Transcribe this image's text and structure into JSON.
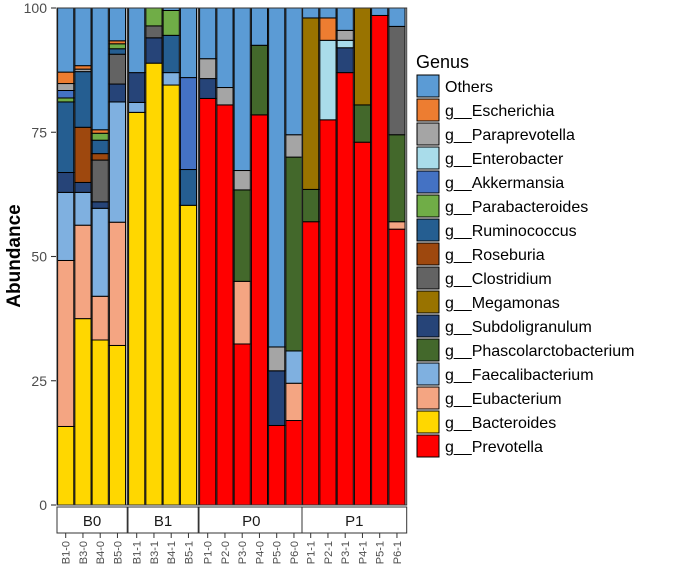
{
  "chart_data": {
    "type": "bar",
    "stacked": true,
    "title": "",
    "xlabel": "",
    "ylabel": "Abundance",
    "ylim": [
      0,
      100
    ],
    "yticks": [
      0,
      25,
      50,
      75,
      100
    ],
    "legend_title": "Genus",
    "legend_position": "right",
    "genera": [
      {
        "name": "Others",
        "color": "#5b9bd5"
      },
      {
        "name": "g__Escherichia",
        "color": "#ed7d31"
      },
      {
        "name": "g__Paraprevotella",
        "color": "#a5a5a5"
      },
      {
        "name": "g__Enterobacter",
        "color": "#a9dcea"
      },
      {
        "name": "g__Akkermansia",
        "color": "#4472c4"
      },
      {
        "name": "g__Parabacteroides",
        "color": "#70ad47"
      },
      {
        "name": "g__Ruminococcus",
        "color": "#255e91"
      },
      {
        "name": "g__Roseburia",
        "color": "#9e480e"
      },
      {
        "name": "g__Clostridium",
        "color": "#636363"
      },
      {
        "name": "g__Megamonas",
        "color": "#997300"
      },
      {
        "name": "g__Subdoligranulum",
        "color": "#264478"
      },
      {
        "name": "g__Phascolarctobacterium",
        "color": "#43682b"
      },
      {
        "name": "g__Faecalibacterium",
        "color": "#7fb0e0"
      },
      {
        "name": "g__Eubacterium",
        "color": "#f4a582"
      },
      {
        "name": "g__Bacteroides",
        "color": "#ffd700"
      },
      {
        "name": "g__Prevotella",
        "color": "#ff0000"
      }
    ],
    "facets": [
      {
        "label": "B0",
        "samples": [
          {
            "name": "B1-0",
            "values": {
              "g__Prevotella": 0,
              "g__Bacteroides": 15.8,
              "g__Eubacterium": 33.4,
              "g__Faecalibacterium": 13.7,
              "g__Phascolarctobacterium": 0,
              "g__Subdoligranulum": 4.0,
              "g__Megamonas": 0,
              "g__Clostridium": 0,
              "g__Roseburia": 0,
              "g__Ruminococcus": 14.2,
              "g__Parabacteroides": 0.8,
              "g__Akkermansia": 1.5,
              "g__Enterobacter": 0,
              "g__Paraprevotella": 1.4,
              "g__Escherichia": 2.3,
              "Others": 12.9
            }
          },
          {
            "name": "B3-0",
            "values": {
              "g__Prevotella": 0,
              "g__Bacteroides": 37.5,
              "g__Eubacterium": 18.8,
              "g__Faecalibacterium": 6.6,
              "g__Phascolarctobacterium": 0,
              "g__Subdoligranulum": 2.0,
              "g__Megamonas": 0,
              "g__Clostridium": 0,
              "g__Roseburia": 11.1,
              "g__Ruminococcus": 11.2,
              "g__Parabacteroides": 0,
              "g__Akkermansia": 0,
              "g__Enterobacter": 0,
              "g__Paraprevotella": 0.5,
              "g__Escherichia": 0.7,
              "Others": 11.6
            }
          },
          {
            "name": "B4-0",
            "values": {
              "g__Prevotella": 0,
              "g__Bacteroides": 33.2,
              "g__Eubacterium": 8.8,
              "g__Faecalibacterium": 17.7,
              "g__Phascolarctobacterium": 0,
              "g__Subdoligranulum": 1.3,
              "g__Megamonas": 0,
              "g__Clostridium": 8.4,
              "g__Roseburia": 1.3,
              "g__Ruminococcus": 2.7,
              "g__Parabacteroides": 1.4,
              "g__Akkermansia": 0,
              "g__Enterobacter": 0,
              "g__Paraprevotella": 0,
              "g__Escherichia": 0.7,
              "Others": 24.5
            }
          },
          {
            "name": "B5-0",
            "values": {
              "g__Prevotella": 0,
              "g__Bacteroides": 32.1,
              "g__Eubacterium": 24.8,
              "g__Faecalibacterium": 24.2,
              "g__Phascolarctobacterium": 0,
              "g__Subdoligranulum": 3.6,
              "g__Megamonas": 0,
              "g__Clostridium": 6.0,
              "g__Roseburia": 0,
              "g__Ruminococcus": 1.1,
              "g__Parabacteroides": 1.0,
              "g__Akkermansia": 0,
              "g__Enterobacter": 0,
              "g__Paraprevotella": 0,
              "g__Escherichia": 0.6,
              "Others": 6.6
            }
          }
        ]
      },
      {
        "label": "B1",
        "samples": [
          {
            "name": "B1-1",
            "values": {
              "g__Prevotella": 0,
              "g__Bacteroides": 79.0,
              "g__Eubacterium": 0,
              "g__Faecalibacterium": 2.0,
              "g__Phascolarctobacterium": 0,
              "g__Subdoligranulum": 6.0,
              "g__Megamonas": 0,
              "g__Clostridium": 0,
              "g__Roseburia": 0,
              "g__Ruminococcus": 0,
              "g__Parabacteroides": 0,
              "g__Akkermansia": 0,
              "g__Enterobacter": 0,
              "g__Paraprevotella": 0,
              "g__Escherichia": 0,
              "Others": 13.0
            }
          },
          {
            "name": "B3-1",
            "values": {
              "g__Prevotella": 0,
              "g__Bacteroides": 88.9,
              "g__Eubacterium": 0,
              "g__Faecalibacterium": 0,
              "g__Phascolarctobacterium": 0,
              "g__Subdoligranulum": 5.1,
              "g__Megamonas": 0,
              "g__Clostridium": 2.4,
              "g__Roseburia": 0,
              "g__Ruminococcus": 0,
              "g__Parabacteroides": 3.6,
              "g__Akkermansia": 0,
              "g__Enterobacter": 0,
              "g__Paraprevotella": 0,
              "g__Escherichia": 0,
              "Others": 0
            }
          },
          {
            "name": "B4-1",
            "values": {
              "g__Prevotella": 0,
              "g__Bacteroides": 84.5,
              "g__Eubacterium": 0,
              "g__Faecalibacterium": 2.5,
              "g__Phascolarctobacterium": 0,
              "g__Subdoligranulum": 0,
              "g__Megamonas": 0,
              "g__Clostridium": 0,
              "g__Roseburia": 0,
              "g__Ruminococcus": 7.5,
              "g__Parabacteroides": 5.0,
              "g__Akkermansia": 0,
              "g__Enterobacter": 0,
              "g__Paraprevotella": 0,
              "g__Escherichia": 0,
              "Others": 0.5
            }
          },
          {
            "name": "B5-1",
            "values": {
              "g__Prevotella": 0,
              "g__Bacteroides": 60.3,
              "g__Eubacterium": 0,
              "g__Faecalibacterium": 0,
              "g__Phascolarctobacterium": 0,
              "g__Subdoligranulum": 0,
              "g__Megamonas": 0,
              "g__Clostridium": 0,
              "g__Roseburia": 0,
              "g__Ruminococcus": 7.2,
              "g__Parabacteroides": 0,
              "g__Akkermansia": 18.5,
              "g__Enterobacter": 0,
              "g__Paraprevotella": 0,
              "g__Escherichia": 0,
              "Others": 14.0
            }
          }
        ]
      },
      {
        "label": "P0",
        "samples": [
          {
            "name": "P1-0",
            "values": {
              "g__Prevotella": 81.8,
              "g__Bacteroides": 0,
              "g__Eubacterium": 0,
              "g__Faecalibacterium": 0,
              "g__Phascolarctobacterium": 0,
              "g__Subdoligranulum": 4.0,
              "g__Megamonas": 0,
              "g__Clostridium": 0,
              "g__Roseburia": 0,
              "g__Ruminococcus": 0,
              "g__Parabacteroides": 0,
              "g__Akkermansia": 0,
              "g__Enterobacter": 0,
              "g__Paraprevotella": 4.0,
              "g__Escherichia": 0,
              "Others": 10.2
            }
          },
          {
            "name": "P2-0",
            "values": {
              "g__Prevotella": 80.5,
              "g__Bacteroides": 0,
              "g__Eubacterium": 0,
              "g__Faecalibacterium": 0,
              "g__Phascolarctobacterium": 0,
              "g__Subdoligranulum": 0,
              "g__Megamonas": 0,
              "g__Clostridium": 0,
              "g__Roseburia": 0,
              "g__Ruminococcus": 0,
              "g__Parabacteroides": 0,
              "g__Akkermansia": 0,
              "g__Enterobacter": 0,
              "g__Paraprevotella": 3.5,
              "g__Escherichia": 0,
              "Others": 16.0
            }
          },
          {
            "name": "P3-0",
            "values": {
              "g__Prevotella": 32.4,
              "g__Bacteroides": 0,
              "g__Eubacterium": 12.6,
              "g__Faecalibacterium": 0,
              "g__Phascolarctobacterium": 18.4,
              "g__Subdoligranulum": 0,
              "g__Megamonas": 0,
              "g__Clostridium": 0,
              "g__Roseburia": 0,
              "g__Ruminococcus": 0,
              "g__Parabacteroides": 0,
              "g__Akkermansia": 0,
              "g__Enterobacter": 0,
              "g__Paraprevotella": 3.9,
              "g__Escherichia": 0,
              "Others": 32.7
            }
          },
          {
            "name": "P4-0",
            "values": {
              "g__Prevotella": 78.5,
              "g__Bacteroides": 0,
              "g__Eubacterium": 0,
              "g__Faecalibacterium": 0,
              "g__Phascolarctobacterium": 14.0,
              "g__Subdoligranulum": 0,
              "g__Megamonas": 0,
              "g__Clostridium": 0,
              "g__Roseburia": 0,
              "g__Ruminococcus": 0,
              "g__Parabacteroides": 0,
              "g__Akkermansia": 0,
              "g__Enterobacter": 0,
              "g__Paraprevotella": 0,
              "g__Escherichia": 0,
              "Others": 7.5
            }
          },
          {
            "name": "P5-0",
            "values": {
              "g__Prevotella": 16.0,
              "g__Bacteroides": 0,
              "g__Eubacterium": 0,
              "g__Faecalibacterium": 0,
              "g__Phascolarctobacterium": 0,
              "g__Subdoligranulum": 11.0,
              "g__Megamonas": 0,
              "g__Clostridium": 0,
              "g__Roseburia": 0,
              "g__Ruminococcus": 0,
              "g__Parabacteroides": 0,
              "g__Akkermansia": 0,
              "g__Enterobacter": 0,
              "g__Paraprevotella": 4.8,
              "g__Escherichia": 0,
              "Others": 68.2
            }
          },
          {
            "name": "P6-0",
            "values": {
              "g__Prevotella": 17.0,
              "g__Bacteroides": 0,
              "g__Eubacterium": 7.5,
              "g__Faecalibacterium": 6.5,
              "g__Phascolarctobacterium": 39.0,
              "g__Subdoligranulum": 0,
              "g__Megamonas": 0,
              "g__Clostridium": 0,
              "g__Roseburia": 0,
              "g__Ruminococcus": 0,
              "g__Parabacteroides": 0,
              "g__Akkermansia": 0,
              "g__Enterobacter": 0,
              "g__Paraprevotella": 4.5,
              "g__Escherichia": 0,
              "Others": 25.5
            }
          }
        ]
      },
      {
        "label": "P1",
        "samples": [
          {
            "name": "P1-1",
            "values": {
              "g__Prevotella": 57.0,
              "g__Bacteroides": 0,
              "g__Eubacterium": 0,
              "g__Faecalibacterium": 0,
              "g__Phascolarctobacterium": 6.5,
              "g__Subdoligranulum": 0,
              "g__Megamonas": 34.5,
              "g__Clostridium": 0,
              "g__Roseburia": 0,
              "g__Ruminococcus": 0,
              "g__Parabacteroides": 0,
              "g__Akkermansia": 0,
              "g__Enterobacter": 0,
              "g__Paraprevotella": 0,
              "g__Escherichia": 0,
              "Others": 2.0
            }
          },
          {
            "name": "P2-1",
            "values": {
              "g__Prevotella": 77.5,
              "g__Bacteroides": 0,
              "g__Eubacterium": 0,
              "g__Faecalibacterium": 0,
              "g__Phascolarctobacterium": 0,
              "g__Subdoligranulum": 0,
              "g__Megamonas": 0,
              "g__Clostridium": 0,
              "g__Roseburia": 0,
              "g__Ruminococcus": 0,
              "g__Parabacteroides": 0,
              "g__Akkermansia": 0,
              "g__Enterobacter": 16.0,
              "g__Paraprevotella": 0,
              "g__Escherichia": 4.5,
              "Others": 2.0
            }
          },
          {
            "name": "P3-1",
            "values": {
              "g__Prevotella": 87.0,
              "g__Bacteroides": 0,
              "g__Eubacterium": 0,
              "g__Faecalibacterium": 0,
              "g__Phascolarctobacterium": 0,
              "g__Subdoligranulum": 5.0,
              "g__Megamonas": 0,
              "g__Clostridium": 0,
              "g__Roseburia": 0,
              "g__Ruminococcus": 0,
              "g__Parabacteroides": 0,
              "g__Akkermansia": 0,
              "g__Enterobacter": 1.5,
              "g__Paraprevotella": 2.0,
              "g__Escherichia": 0,
              "Others": 4.5
            }
          },
          {
            "name": "P4-1",
            "values": {
              "g__Prevotella": 73.0,
              "g__Bacteroides": 0,
              "g__Eubacterium": 0,
              "g__Faecalibacterium": 0,
              "g__Phascolarctobacterium": 7.5,
              "g__Subdoligranulum": 0,
              "g__Megamonas": 19.5,
              "g__Clostridium": 0,
              "g__Roseburia": 0,
              "g__Ruminococcus": 0,
              "g__Parabacteroides": 0,
              "g__Akkermansia": 0,
              "g__Enterobacter": 0,
              "g__Paraprevotella": 0,
              "g__Escherichia": 0,
              "Others": 0
            }
          },
          {
            "name": "P5-1",
            "values": {
              "g__Prevotella": 98.5,
              "g__Bacteroides": 0,
              "g__Eubacterium": 0,
              "g__Faecalibacterium": 0,
              "g__Phascolarctobacterium": 0,
              "g__Subdoligranulum": 0,
              "g__Megamonas": 0,
              "g__Clostridium": 0,
              "g__Roseburia": 0,
              "g__Ruminococcus": 0,
              "g__Parabacteroides": 0,
              "g__Akkermansia": 0,
              "g__Enterobacter": 0,
              "g__Paraprevotella": 0,
              "g__Escherichia": 0,
              "Others": 1.5
            }
          },
          {
            "name": "P6-1",
            "values": {
              "g__Prevotella": 55.5,
              "g__Bacteroides": 0,
              "g__Eubacterium": 1.5,
              "g__Faecalibacterium": 0,
              "g__Phascolarctobacterium": 17.5,
              "g__Subdoligranulum": 0,
              "g__Megamonas": 0,
              "g__Clostridium": 21.8,
              "g__Roseburia": 0,
              "g__Ruminococcus": 0,
              "g__Parabacteroides": 0,
              "g__Akkermansia": 0,
              "g__Enterobacter": 0,
              "g__Paraprevotella": 0,
              "g__Escherichia": 0,
              "Others": 3.7
            }
          }
        ]
      }
    ]
  }
}
